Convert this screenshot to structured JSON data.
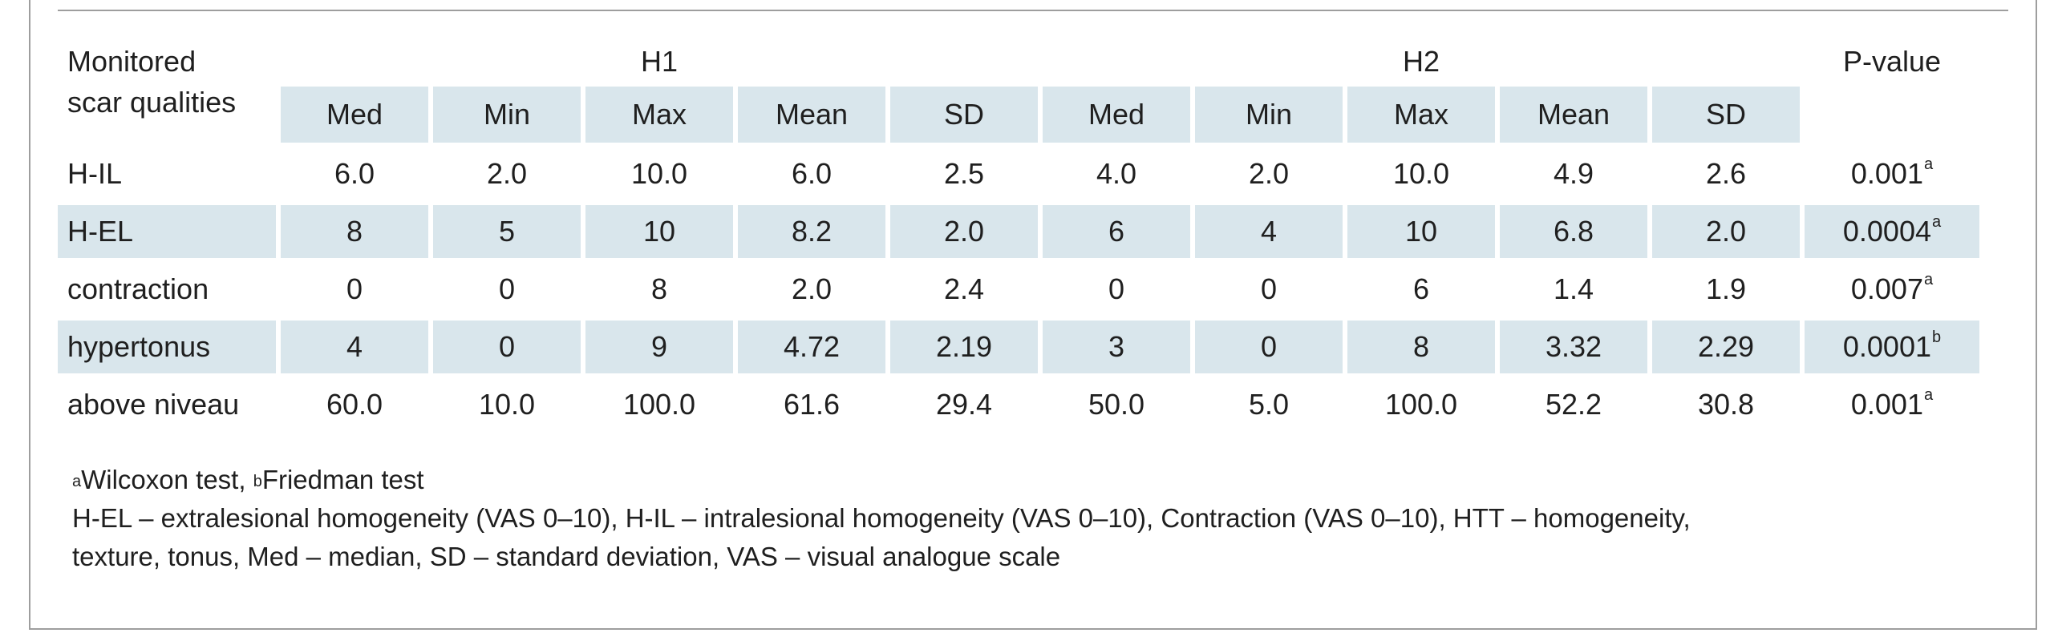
{
  "table": {
    "row_header_line1": "Monitored",
    "row_header_line2": "scar qualities",
    "group1": "H1",
    "group2": "H2",
    "pvalue_header": "P-value",
    "sub_headers": [
      "Med",
      "Min",
      "Max",
      "Mean",
      "SD",
      "Med",
      "Min",
      "Max",
      "Mean",
      "SD"
    ],
    "rows": [
      {
        "label": "H-IL",
        "values": [
          "6.0",
          "2.0",
          "10.0",
          "6.0",
          "2.5",
          "4.0",
          "2.0",
          "10.0",
          "4.9",
          "2.6"
        ],
        "p": "0.001",
        "p_mark": "a"
      },
      {
        "label": "H-EL",
        "values": [
          "8",
          "5",
          "10",
          "8.2",
          "2.0",
          "6",
          "4",
          "10",
          "6.8",
          "2.0"
        ],
        "p": "0.0004",
        "p_mark": "a"
      },
      {
        "label": "contraction",
        "values": [
          "0",
          "0",
          "8",
          "2.0",
          "2.4",
          "0",
          "0",
          "6",
          "1.4",
          "1.9"
        ],
        "p": "0.007",
        "p_mark": "a"
      },
      {
        "label": "hypertonus",
        "values": [
          "4",
          "0",
          "9",
          "4.72",
          "2.19",
          "3",
          "0",
          "8",
          "3.32",
          "2.29"
        ],
        "p": "0.0001",
        "p_mark": "b"
      },
      {
        "label": "above niveau",
        "values": [
          "60.0",
          "10.0",
          "100.0",
          "61.6",
          "29.4",
          "50.0",
          "5.0",
          "100.0",
          "52.2",
          "30.8"
        ],
        "p": "0.001",
        "p_mark": "a"
      }
    ]
  },
  "notes": {
    "mark_a": "a",
    "test_a": "Wilcoxon test, ",
    "mark_b": "b",
    "test_b": "Friedman test",
    "line2": "H-EL – extralesional homogeneity (VAS 0–10), H-IL – intralesional homogeneity (VAS 0–10), Contraction (VAS 0–10), HTT – homogeneity,",
    "line3": "texture, tonus, Med – median, SD – standard deviation, VAS – visual analogue scale"
  },
  "colors": {
    "row_shade": "#d9e6ec",
    "border": "#9e9e9e",
    "text": "#1f1f1f"
  }
}
